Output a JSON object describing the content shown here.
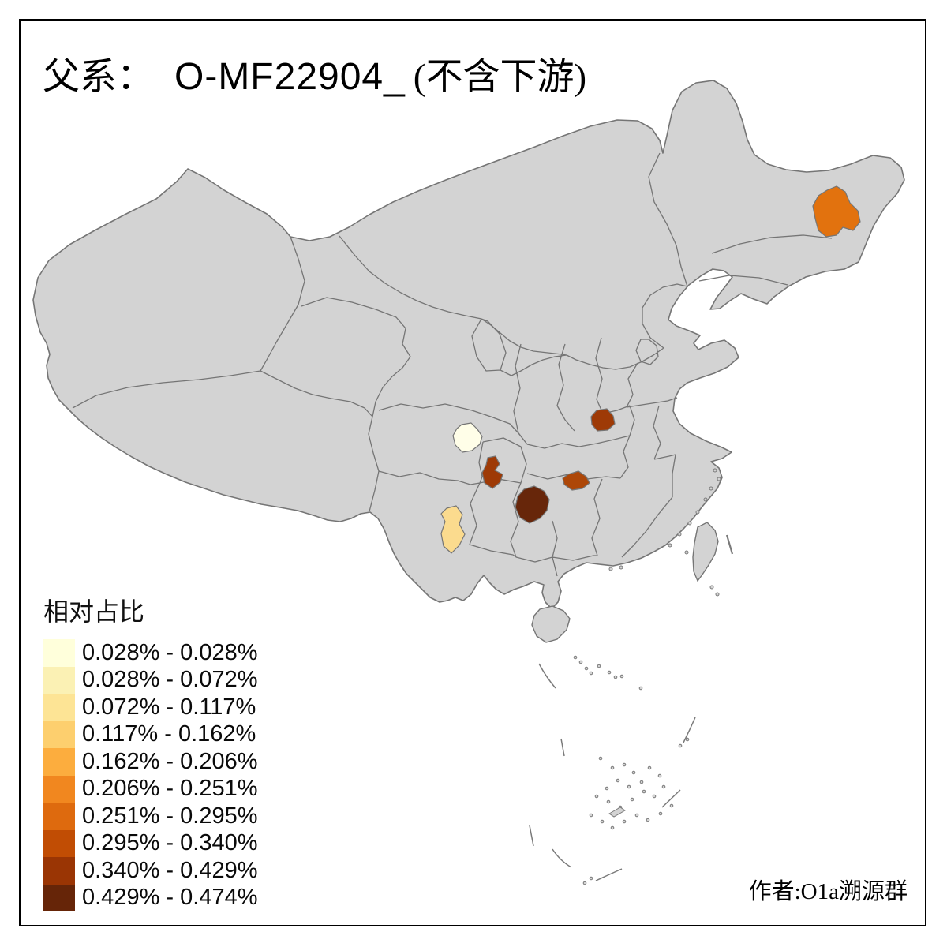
{
  "title": {
    "prefix": "父系：",
    "haplogroup": "O-MF22904_",
    "suffix": "(不含下游)"
  },
  "legend": {
    "title": "相对占比",
    "classes": [
      {
        "label": "0.028% - 0.028%",
        "color": "#FFFFDB"
      },
      {
        "label": "0.028% - 0.072%",
        "color": "#FBF1B4"
      },
      {
        "label": "0.072% - 0.117%",
        "color": "#FDE495"
      },
      {
        "label": "0.117% - 0.162%",
        "color": "#FDCF6E"
      },
      {
        "label": "0.162% - 0.206%",
        "color": "#FCAD3E"
      },
      {
        "label": "0.206% - 0.251%",
        "color": "#F1871F"
      },
      {
        "label": "0.251% - 0.295%",
        "color": "#DE6A0E"
      },
      {
        "label": "0.295% - 0.340%",
        "color": "#C14D04"
      },
      {
        "label": "0.340% - 0.429%",
        "color": "#9A3504"
      },
      {
        "label": "0.429% - 0.474%",
        "color": "#662508"
      }
    ]
  },
  "attribution": {
    "text": "作者:O1a溯源群"
  },
  "map": {
    "background": "#FFFFFF",
    "frame_color": "#000000",
    "base_fill": "#D3D3D3",
    "border_color": "#757575",
    "highlighted_regions": [
      {
        "id": "region-northeast",
        "range": "0.251% - 0.295%",
        "color": "#E2720E"
      },
      {
        "id": "region-sichuan-basin",
        "range": "0.028% - 0.028%",
        "color": "#FFFEE8"
      },
      {
        "id": "region-hubei",
        "range": "0.340% - 0.429%",
        "color": "#9E3A06"
      },
      {
        "id": "region-chongqing",
        "range": "0.340% - 0.429%",
        "color": "#9E3A06"
      },
      {
        "id": "region-guizhou",
        "range": "0.429% - 0.474%",
        "color": "#67260A"
      },
      {
        "id": "region-hunan",
        "range": "0.295% - 0.340%",
        "color": "#AD4708"
      },
      {
        "id": "region-yunnan",
        "range": "0.072% - 0.117%",
        "color": "#FBDB8E"
      }
    ]
  }
}
